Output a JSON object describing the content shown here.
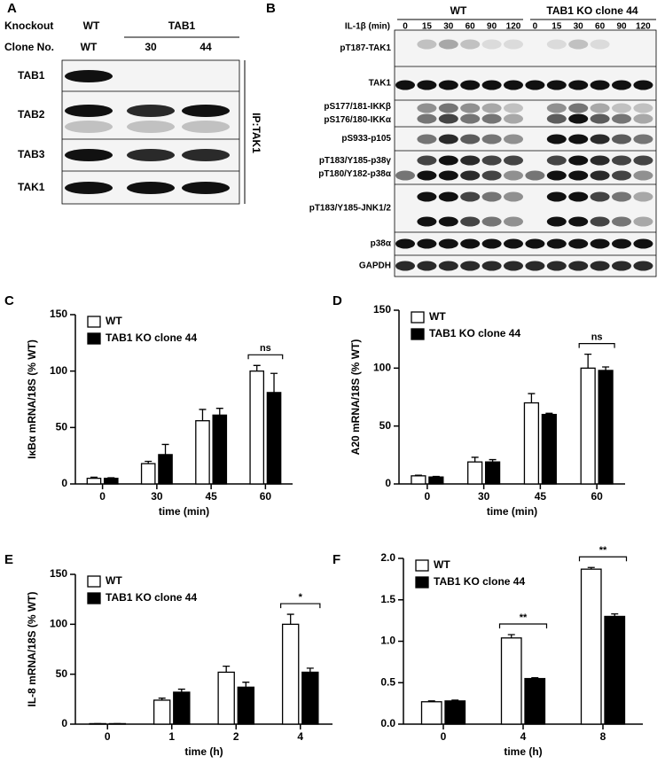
{
  "blot_a": {
    "panel_label": "A",
    "knockout_label": "Knockout",
    "knockout_groups": [
      "WT",
      "TAB1"
    ],
    "clone_label": "Clone No.",
    "clones": [
      "WT",
      "30",
      "44"
    ],
    "rows": [
      "TAB1",
      "TAB2",
      "TAB3",
      "TAK1"
    ],
    "ip_label": "IP:TAK1"
  },
  "blot_b": {
    "panel_label": "B",
    "groups": [
      "WT",
      "TAB1 KO clone 44"
    ],
    "time_label": "IL-1β (min)",
    "times": [
      "0",
      "15",
      "30",
      "60",
      "90",
      "120",
      "0",
      "15",
      "30",
      "60",
      "90",
      "120"
    ],
    "rows": [
      [
        "pT187-TAK1"
      ],
      [
        "TAK1"
      ],
      [
        "pS177/181-IKKβ",
        "pS176/180-IKKα"
      ],
      [
        "pS933-p105"
      ],
      [
        "pT183/Y185-p38γ",
        "pT180/Y182-p38α"
      ],
      [
        "pT183/Y185-JNK1/2"
      ],
      [
        "p38α"
      ],
      [
        "GAPDH"
      ]
    ]
  },
  "chart_data": [
    {
      "type": "bar",
      "panel_label": "C",
      "ylabel": "IκBα mRNA/18S (% WT)",
      "xlabel": "time (min)",
      "categories": [
        "0",
        "30",
        "45",
        "60"
      ],
      "series": [
        {
          "name": "WT",
          "color": "#ffffff",
          "values": [
            5,
            18,
            56,
            100
          ],
          "errors": [
            1,
            2,
            10,
            5
          ]
        },
        {
          "name": "TAB1 KO clone 44",
          "color": "#000000",
          "values": [
            5,
            26,
            61,
            81
          ],
          "errors": [
            0.5,
            9,
            6,
            17
          ]
        }
      ],
      "ylim": [
        0,
        150
      ],
      "yticks": [
        0,
        50,
        100,
        150
      ],
      "legend": "upper left",
      "annotations": [
        "ns"
      ]
    },
    {
      "type": "bar",
      "panel_label": "D",
      "ylabel": "A20 mRNA/18S (% WT)",
      "xlabel": "time (min)",
      "categories": [
        "0",
        "30",
        "45",
        "60"
      ],
      "series": [
        {
          "name": "WT",
          "color": "#ffffff",
          "values": [
            7,
            19,
            70,
            100
          ],
          "errors": [
            0.5,
            4,
            8,
            12
          ]
        },
        {
          "name": "TAB1 KO clone 44",
          "color": "#000000",
          "values": [
            6,
            19,
            60,
            98
          ],
          "errors": [
            0.5,
            2,
            1,
            3
          ]
        }
      ],
      "ylim": [
        0,
        150
      ],
      "yticks": [
        0,
        50,
        100,
        150
      ],
      "legend": "upper left",
      "annotations": [
        "ns"
      ]
    },
    {
      "type": "bar",
      "panel_label": "E",
      "ylabel": "IL-8 mRNA/18S (% WT)",
      "xlabel": "time (h)",
      "categories": [
        "0",
        "1",
        "2",
        "4"
      ],
      "series": [
        {
          "name": "WT",
          "color": "#ffffff",
          "values": [
            0.5,
            24,
            52,
            100
          ],
          "errors": [
            0,
            2,
            6,
            10
          ]
        },
        {
          "name": "TAB1 KO clone 44",
          "color": "#000000",
          "values": [
            0.5,
            32,
            37,
            52
          ],
          "errors": [
            0,
            3,
            5,
            4
          ]
        }
      ],
      "ylim": [
        0,
        150
      ],
      "yticks": [
        0,
        50,
        100,
        150
      ],
      "legend": "upper left",
      "annotations": [
        "*"
      ]
    },
    {
      "type": "bar",
      "panel_label": "F",
      "xlabel": "time (h)",
      "categories": [
        "0",
        "4",
        "8"
      ],
      "series": [
        {
          "name": "WT",
          "color": "#ffffff",
          "values": [
            0.27,
            1.04,
            1.87
          ],
          "errors": [
            0.01,
            0.04,
            0.02
          ]
        },
        {
          "name": "TAB1 KO clone 44",
          "color": "#000000",
          "values": [
            0.28,
            0.55,
            1.3
          ],
          "errors": [
            0.01,
            0.01,
            0.03
          ]
        }
      ],
      "ylim": [
        0,
        2
      ],
      "yticks": [
        {
          "value": 0,
          "label": "0.0"
        },
        0.5,
        {
          "value": 1,
          "label": "1.0"
        },
        1.5,
        {
          "value": 2,
          "label": "2.0"
        }
      ],
      "legend": "upper left",
      "annotations": [
        "**",
        "**"
      ]
    }
  ]
}
